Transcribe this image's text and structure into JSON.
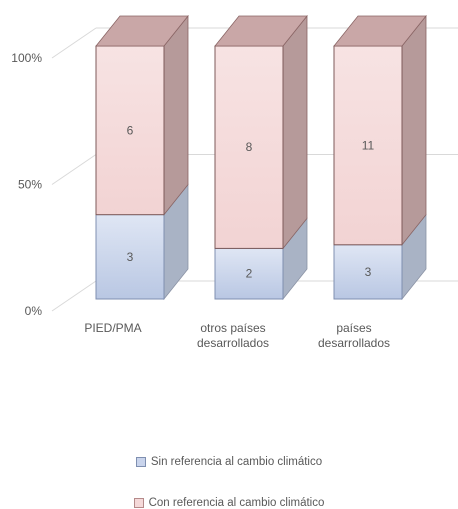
{
  "chart_data": {
    "type": "bar",
    "stacked": true,
    "percent": true,
    "style": "3d",
    "categories": [
      [
        "PIED/PMA"
      ],
      [
        "otros países",
        "desarrollados"
      ],
      [
        "países",
        "desarrollados"
      ]
    ],
    "series": [
      {
        "name": "Sin referencia al cambio climático",
        "values": [
          3,
          2,
          3
        ],
        "color": "#c9d4ec"
      },
      {
        "name": "Con referencia al cambio climático",
        "values": [
          6,
          8,
          11
        ],
        "color": "#f5d9d9"
      }
    ],
    "y_ticks": [
      "0%",
      "50%",
      "100%"
    ],
    "ylim": [
      0,
      100
    ],
    "legend_position": "bottom"
  }
}
